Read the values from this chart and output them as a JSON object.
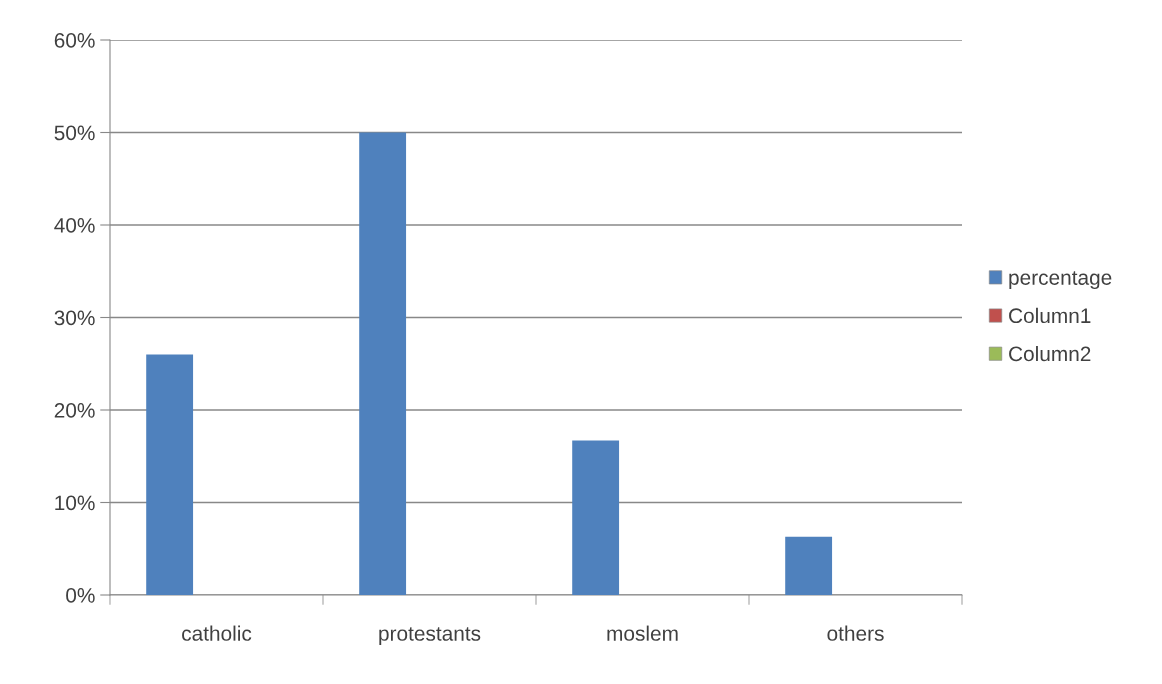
{
  "chart_data": {
    "type": "bar",
    "categories": [
      "catholic",
      "protestants",
      "moslem",
      "others"
    ],
    "series": [
      {
        "name": "percentage",
        "color": "#4f81bd",
        "values": [
          26,
          50,
          16.7,
          6.3
        ]
      },
      {
        "name": "Column1",
        "color": "#c0504d",
        "values": [
          null,
          null,
          null,
          null
        ]
      },
      {
        "name": "Column2",
        "color": "#9bbb59",
        "values": [
          null,
          null,
          null,
          null
        ]
      }
    ],
    "ylim": [
      0,
      60
    ],
    "yticks": [
      {
        "value": 0,
        "label": "0%"
      },
      {
        "value": 10,
        "label": "10%"
      },
      {
        "value": 20,
        "label": "20%"
      },
      {
        "value": 30,
        "label": "30%"
      },
      {
        "value": 40,
        "label": "40%"
      },
      {
        "value": 50,
        "label": "50%"
      },
      {
        "value": 60,
        "label": "60%"
      }
    ],
    "grid": "y",
    "legend": "right"
  }
}
